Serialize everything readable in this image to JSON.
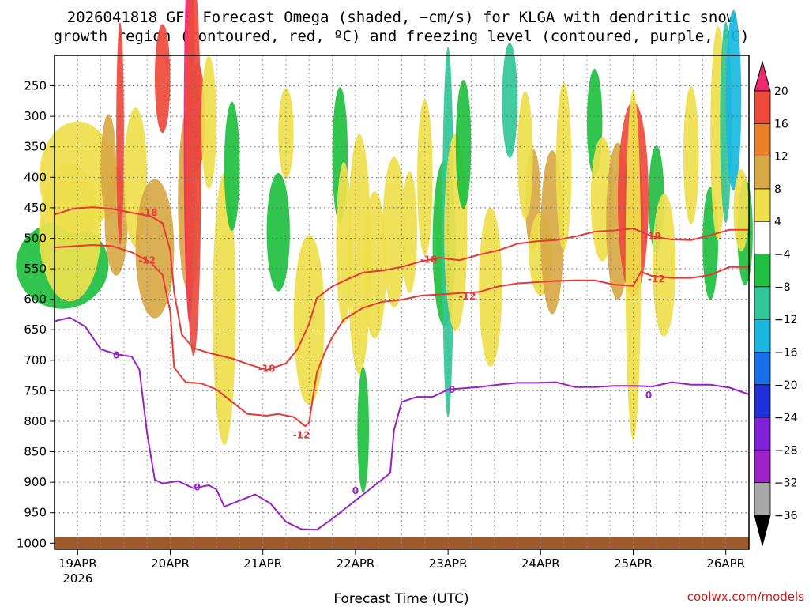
{
  "chart_data": {
    "type": "heatmap",
    "title_line1": "2026041818 GFS Forecast Omega (shaded, −cm/s) for KLGA with dendritic snow",
    "title_line2": "growth region (contoured, red, ºC) and freezing level (contoured, purple, ºC)",
    "xlabel": "Forecast Time (UTC)",
    "credit": "coolwx.com/models",
    "y_ticks": [
      250,
      300,
      350,
      400,
      450,
      500,
      550,
      600,
      650,
      700,
      750,
      800,
      850,
      900,
      950,
      1000
    ],
    "y_range_hpa": [
      200,
      1010
    ],
    "x_range_hours": [
      0,
      180
    ],
    "x_ticks": [
      {
        "hour": 6,
        "label": "19APR",
        "sub": "2026"
      },
      {
        "hour": 30,
        "label": "20APR",
        "sub": ""
      },
      {
        "hour": 54,
        "label": "21APR",
        "sub": ""
      },
      {
        "hour": 78,
        "label": "22APR",
        "sub": ""
      },
      {
        "hour": 102,
        "label": "23APR",
        "sub": ""
      },
      {
        "hour": 126,
        "label": "24APR",
        "sub": ""
      },
      {
        "hour": 150,
        "label": "25APR",
        "sub": ""
      },
      {
        "hour": 174,
        "label": "26APR",
        "sub": ""
      }
    ],
    "colorbar": {
      "labels": [
        "20",
        "16",
        "12",
        "8",
        "4",
        "−4",
        "−8",
        "−12",
        "−16",
        "−20",
        "−24",
        "−28",
        "−32",
        "−36"
      ],
      "colors": [
        "#f0286e",
        "#ee4a3c",
        "#e8802a",
        "#d8a844",
        "#eee04c",
        "#ffffff",
        "#20c040",
        "#30c898",
        "#18b8e0",
        "#1870e8",
        "#2030d8",
        "#8020d8",
        "#a020c8",
        "#a8a8a8",
        "#000000"
      ]
    },
    "contours": {
      "minus18": {
        "label": "-18",
        "color": "#e83838",
        "points": [
          [
            0,
            461
          ],
          [
            5,
            451
          ],
          [
            10,
            449
          ],
          [
            15,
            452
          ],
          [
            20,
            458
          ],
          [
            25,
            464
          ],
          [
            28,
            475
          ],
          [
            30,
            520
          ],
          [
            31,
            588
          ],
          [
            33,
            658
          ],
          [
            36,
            680
          ],
          [
            40,
            688
          ],
          [
            46,
            697
          ],
          [
            50,
            706
          ],
          [
            55,
            716
          ],
          [
            60,
            705
          ],
          [
            63,
            682
          ],
          [
            66,
            640
          ],
          [
            68,
            598
          ],
          [
            72,
            579
          ],
          [
            76,
            567
          ],
          [
            80,
            556
          ],
          [
            85,
            553
          ],
          [
            90,
            547
          ],
          [
            95,
            538
          ],
          [
            100,
            532
          ],
          [
            105,
            536
          ],
          [
            110,
            527
          ],
          [
            115,
            520
          ],
          [
            120,
            509
          ],
          [
            125,
            505
          ],
          [
            130,
            503
          ],
          [
            135,
            497
          ],
          [
            140,
            489
          ],
          [
            145,
            487
          ],
          [
            150,
            484
          ],
          [
            155,
            497
          ],
          [
            160,
            502
          ],
          [
            165,
            503
          ],
          [
            170,
            495
          ],
          [
            175,
            486
          ],
          [
            180,
            486
          ]
        ]
      },
      "minus12": {
        "label": "-12",
        "color": "#e83838",
        "points": [
          [
            0,
            515
          ],
          [
            5,
            513
          ],
          [
            10,
            511
          ],
          [
            15,
            513
          ],
          [
            20,
            523
          ],
          [
            25,
            540
          ],
          [
            28,
            560
          ],
          [
            30,
            620
          ],
          [
            31,
            712
          ],
          [
            34,
            736
          ],
          [
            38,
            738
          ],
          [
            42,
            748
          ],
          [
            46,
            768
          ],
          [
            50,
            788
          ],
          [
            55,
            791
          ],
          [
            58,
            788
          ],
          [
            62,
            793
          ],
          [
            65,
            808
          ],
          [
            66,
            802
          ],
          [
            67,
            760
          ],
          [
            68,
            720
          ],
          [
            70,
            688
          ],
          [
            72,
            662
          ],
          [
            75,
            633
          ],
          [
            80,
            614
          ],
          [
            85,
            604
          ],
          [
            90,
            601
          ],
          [
            95,
            594
          ],
          [
            100,
            592
          ],
          [
            105,
            590
          ],
          [
            110,
            588
          ],
          [
            115,
            579
          ],
          [
            120,
            574
          ],
          [
            125,
            572
          ],
          [
            130,
            570
          ],
          [
            135,
            569
          ],
          [
            140,
            569
          ],
          [
            145,
            576
          ],
          [
            150,
            578
          ],
          [
            152,
            555
          ],
          [
            155,
            562
          ],
          [
            160,
            565
          ],
          [
            165,
            565
          ],
          [
            170,
            560
          ],
          [
            175,
            547
          ],
          [
            180,
            547
          ]
        ]
      },
      "zero": {
        "label": "0",
        "color": "#9820c8",
        "points": [
          [
            0,
            636
          ],
          [
            4,
            630
          ],
          [
            8,
            645
          ],
          [
            12,
            682
          ],
          [
            16,
            690
          ],
          [
            20,
            694
          ],
          [
            22,
            715
          ],
          [
            24,
            820
          ],
          [
            26,
            896
          ],
          [
            28,
            902
          ],
          [
            32,
            898
          ],
          [
            36,
            910
          ],
          [
            40,
            905
          ],
          [
            42,
            912
          ],
          [
            44,
            940
          ],
          [
            48,
            930
          ],
          [
            52,
            920
          ],
          [
            56,
            935
          ],
          [
            60,
            965
          ],
          [
            64,
            977
          ],
          [
            68,
            978
          ],
          [
            72,
            960
          ],
          [
            76,
            940
          ],
          [
            80,
            920
          ],
          [
            84,
            900
          ],
          [
            87,
            885
          ],
          [
            88,
            815
          ],
          [
            90,
            768
          ],
          [
            94,
            760
          ],
          [
            98,
            760
          ],
          [
            102,
            748
          ],
          [
            106,
            746
          ],
          [
            110,
            744
          ],
          [
            115,
            740
          ],
          [
            120,
            737
          ],
          [
            125,
            737
          ],
          [
            130,
            736
          ],
          [
            135,
            744
          ],
          [
            140,
            744
          ],
          [
            145,
            742
          ],
          [
            150,
            742
          ],
          [
            155,
            743
          ],
          [
            160,
            736
          ],
          [
            165,
            740
          ],
          [
            170,
            740
          ],
          [
            175,
            745
          ],
          [
            180,
            756
          ]
        ]
      }
    }
  }
}
